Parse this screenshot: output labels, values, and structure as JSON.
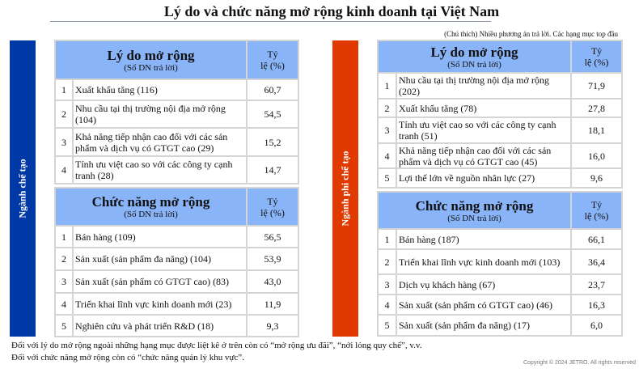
{
  "title": "Lý do và chức năng mở rộng kinh doanh tại Việt Nam",
  "note": "(Chú thích) Nhiều phương án trả lời. Các hạng mục top đầu",
  "colors": {
    "manufacturing": "#0039a6",
    "non_manufacturing": "#e03a00",
    "header": "#8ab4f8"
  },
  "panels": [
    {
      "side_label": "Ngành chế tạo",
      "reasons": {
        "heading": "Lý do mở rộng",
        "sub": "(Số DN trả lời)",
        "rate_label": "Tỷ lệ (%)",
        "rows": [
          [
            "1",
            "Xuất khẩu tăng (116)",
            "60,7"
          ],
          [
            "2",
            "Nhu cầu tại thị trường nội địa mở rộng (104)",
            "54,5"
          ],
          [
            "3",
            "Khả năng tiếp nhận cao đối với các sản phẩm và dịch vụ có GTGT cao (29)",
            "15,2"
          ],
          [
            "4",
            "Tính ưu việt cao so với các công ty cạnh tranh (28)",
            "14,7"
          ]
        ]
      },
      "functions": {
        "heading": "Chức năng mở rộng",
        "sub": "(Số DN trả lời)",
        "rate_label": "Tỷ lệ (%)",
        "rows": [
          [
            "1",
            "Bán hàng (109)",
            "56,5"
          ],
          [
            "2",
            "Sản xuất (sản phẩm đa năng) (104)",
            "53,9"
          ],
          [
            "3",
            "Sản xuất (sản phẩm có GTGT cao) (83)",
            "43,0"
          ],
          [
            "4",
            "Triển khai lĩnh vực kinh doanh mới (23)",
            "11,9"
          ],
          [
            "5",
            "Nghiên cứu và phát triển R&D (18)",
            "9,3"
          ]
        ]
      }
    },
    {
      "side_label": "Ngành phi chế tạo",
      "reasons": {
        "heading": "Lý do mở rộng",
        "sub": "(Số DN trả lời)",
        "rate_label": "Tỷ lệ (%)",
        "rows": [
          [
            "1",
            "Nhu cầu tại thị trường nội địa mở rộng (202)",
            "71,9"
          ],
          [
            "2",
            "Xuất khẩu tăng (78)",
            "27,8"
          ],
          [
            "3",
            "Tính ưu việt cao so với các công ty cạnh tranh (51)",
            "18,1"
          ],
          [
            "4",
            "Khả năng tiếp nhận cao đối với các sản phẩm và dịch vụ có GTGT cao (45)",
            "16,0"
          ],
          [
            "5",
            "Lợi thế lớn về nguồn nhân lực (27)",
            "9,6"
          ]
        ]
      },
      "functions": {
        "heading": "Chức năng mở rộng",
        "sub": "(Số DN trả lời)",
        "rate_label": "Tỷ lệ (%)",
        "rows": [
          [
            "1",
            "Bán hàng (187)",
            "66,1"
          ],
          [
            "2",
            "Triển khai lĩnh vực kinh doanh mới (103)",
            "36,4"
          ],
          [
            "3",
            "Dịch vụ khách hàng (67)",
            "23,7"
          ],
          [
            "4",
            "Sản xuất (sản phẩm có GTGT cao) (46)",
            "16,3"
          ],
          [
            "5",
            "Sản xuất (sản phẩm đa năng) (17)",
            "6,0"
          ]
        ]
      }
    }
  ],
  "footnotes": [
    "Đối với lý do mở rộng ngoài những hạng mục được liệt kê ở trên còn có “mở rộng ưu đãi”, “nới lỏng quy chế”, v.v.",
    "Đối với chức năng mở rộng còn có “chức năng quản lý khu vực”."
  ],
  "copyright": "Copyright © 2024 JETRO. All rights reserved"
}
